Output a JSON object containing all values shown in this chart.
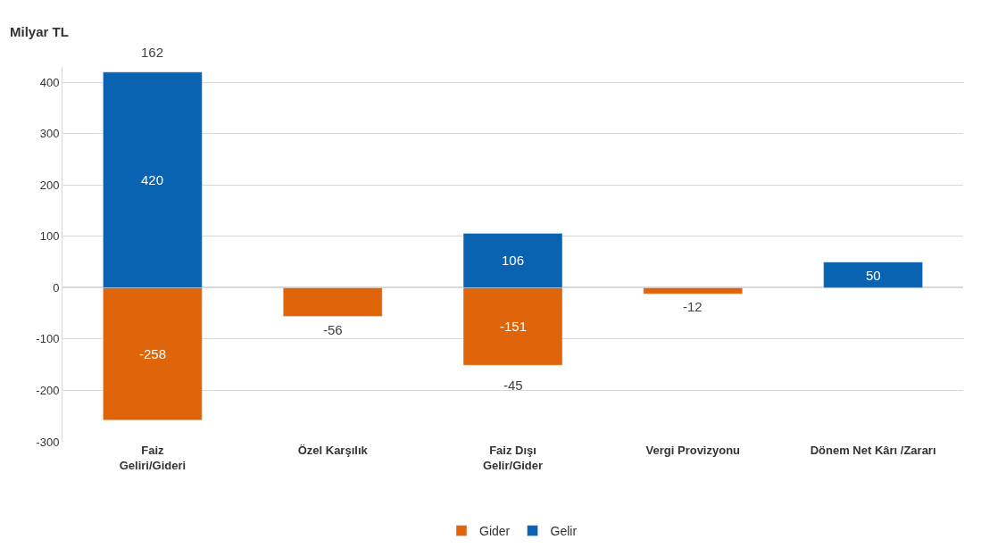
{
  "chart_data": {
    "type": "bar",
    "stacked": true,
    "ylabel": "Milyar TL",
    "categories": [
      "Faiz\nGeliri/Gideri",
      "Özel Karşılık",
      "Faiz Dışı\nGelir/Gider",
      "Vergi Provizyonu",
      "Dönem Net Kârı /Zararı"
    ],
    "series": [
      {
        "name": "Gider",
        "color": "#e0650a",
        "values": [
          -258,
          -56,
          -151,
          -12,
          null
        ]
      },
      {
        "name": "Gelir",
        "color": "#0a63b0",
        "values": [
          420,
          null,
          106,
          null,
          50
        ]
      }
    ],
    "data_labels": true,
    "totals": [
      "162",
      null,
      "-45",
      null,
      null
    ],
    "ylim": [
      -300,
      430
    ],
    "yticks": [
      -300,
      -200,
      -100,
      0,
      100,
      200,
      300,
      400
    ],
    "grid": "y",
    "legend": "bottom"
  }
}
